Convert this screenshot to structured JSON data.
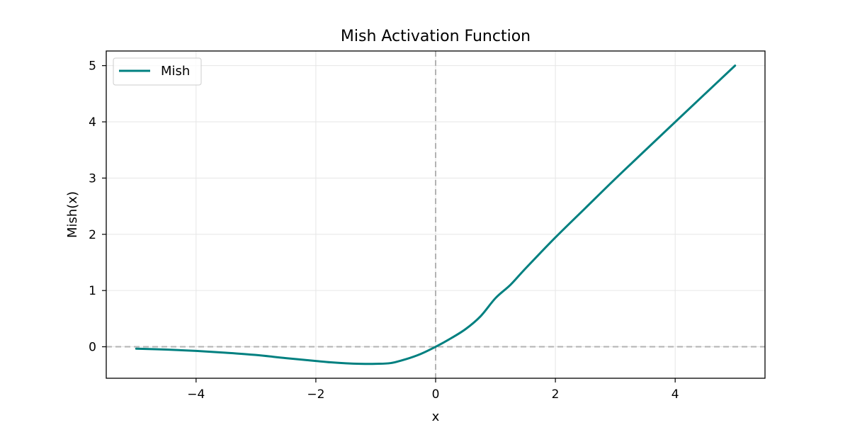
{
  "chart_data": {
    "type": "line",
    "title": "Mish Activation Function",
    "xlabel": "x",
    "ylabel": "Mish(x)",
    "xlim": [
      -5.5,
      5.5
    ],
    "ylim": [
      -0.56,
      5.26
    ],
    "xticks": [
      -4,
      -2,
      0,
      2,
      4
    ],
    "xtick_labels": [
      "−4",
      "−2",
      "0",
      "2",
      "4"
    ],
    "yticks": [
      0,
      1,
      2,
      3,
      4,
      5
    ],
    "ytick_labels": [
      "0",
      "1",
      "2",
      "3",
      "4",
      "5"
    ],
    "grid": true,
    "legend_position": "upper left",
    "reference_lines": {
      "x": 0,
      "y": 0,
      "style": "dashed",
      "color": "#b3b3b3"
    },
    "series": [
      {
        "name": "Mish",
        "color": "#008080",
        "x": [
          -5.0,
          -4.5,
          -4.0,
          -3.5,
          -3.0,
          -2.5,
          -2.0,
          -1.75,
          -1.5,
          -1.25,
          -1.0,
          -0.75,
          -0.5,
          -0.25,
          0.0,
          0.25,
          0.5,
          0.75,
          1.0,
          1.25,
          1.5,
          2.0,
          2.5,
          3.0,
          3.5,
          4.0,
          4.5,
          5.0
        ],
        "y": [
          -0.034,
          -0.05,
          -0.073,
          -0.106,
          -0.146,
          -0.202,
          -0.253,
          -0.277,
          -0.294,
          -0.303,
          -0.303,
          -0.29,
          -0.222,
          -0.128,
          0.0,
          0.147,
          0.314,
          0.542,
          0.865,
          1.102,
          1.391,
          1.944,
          2.466,
          2.987,
          3.493,
          3.997,
          4.499,
          5.0
        ]
      }
    ]
  }
}
